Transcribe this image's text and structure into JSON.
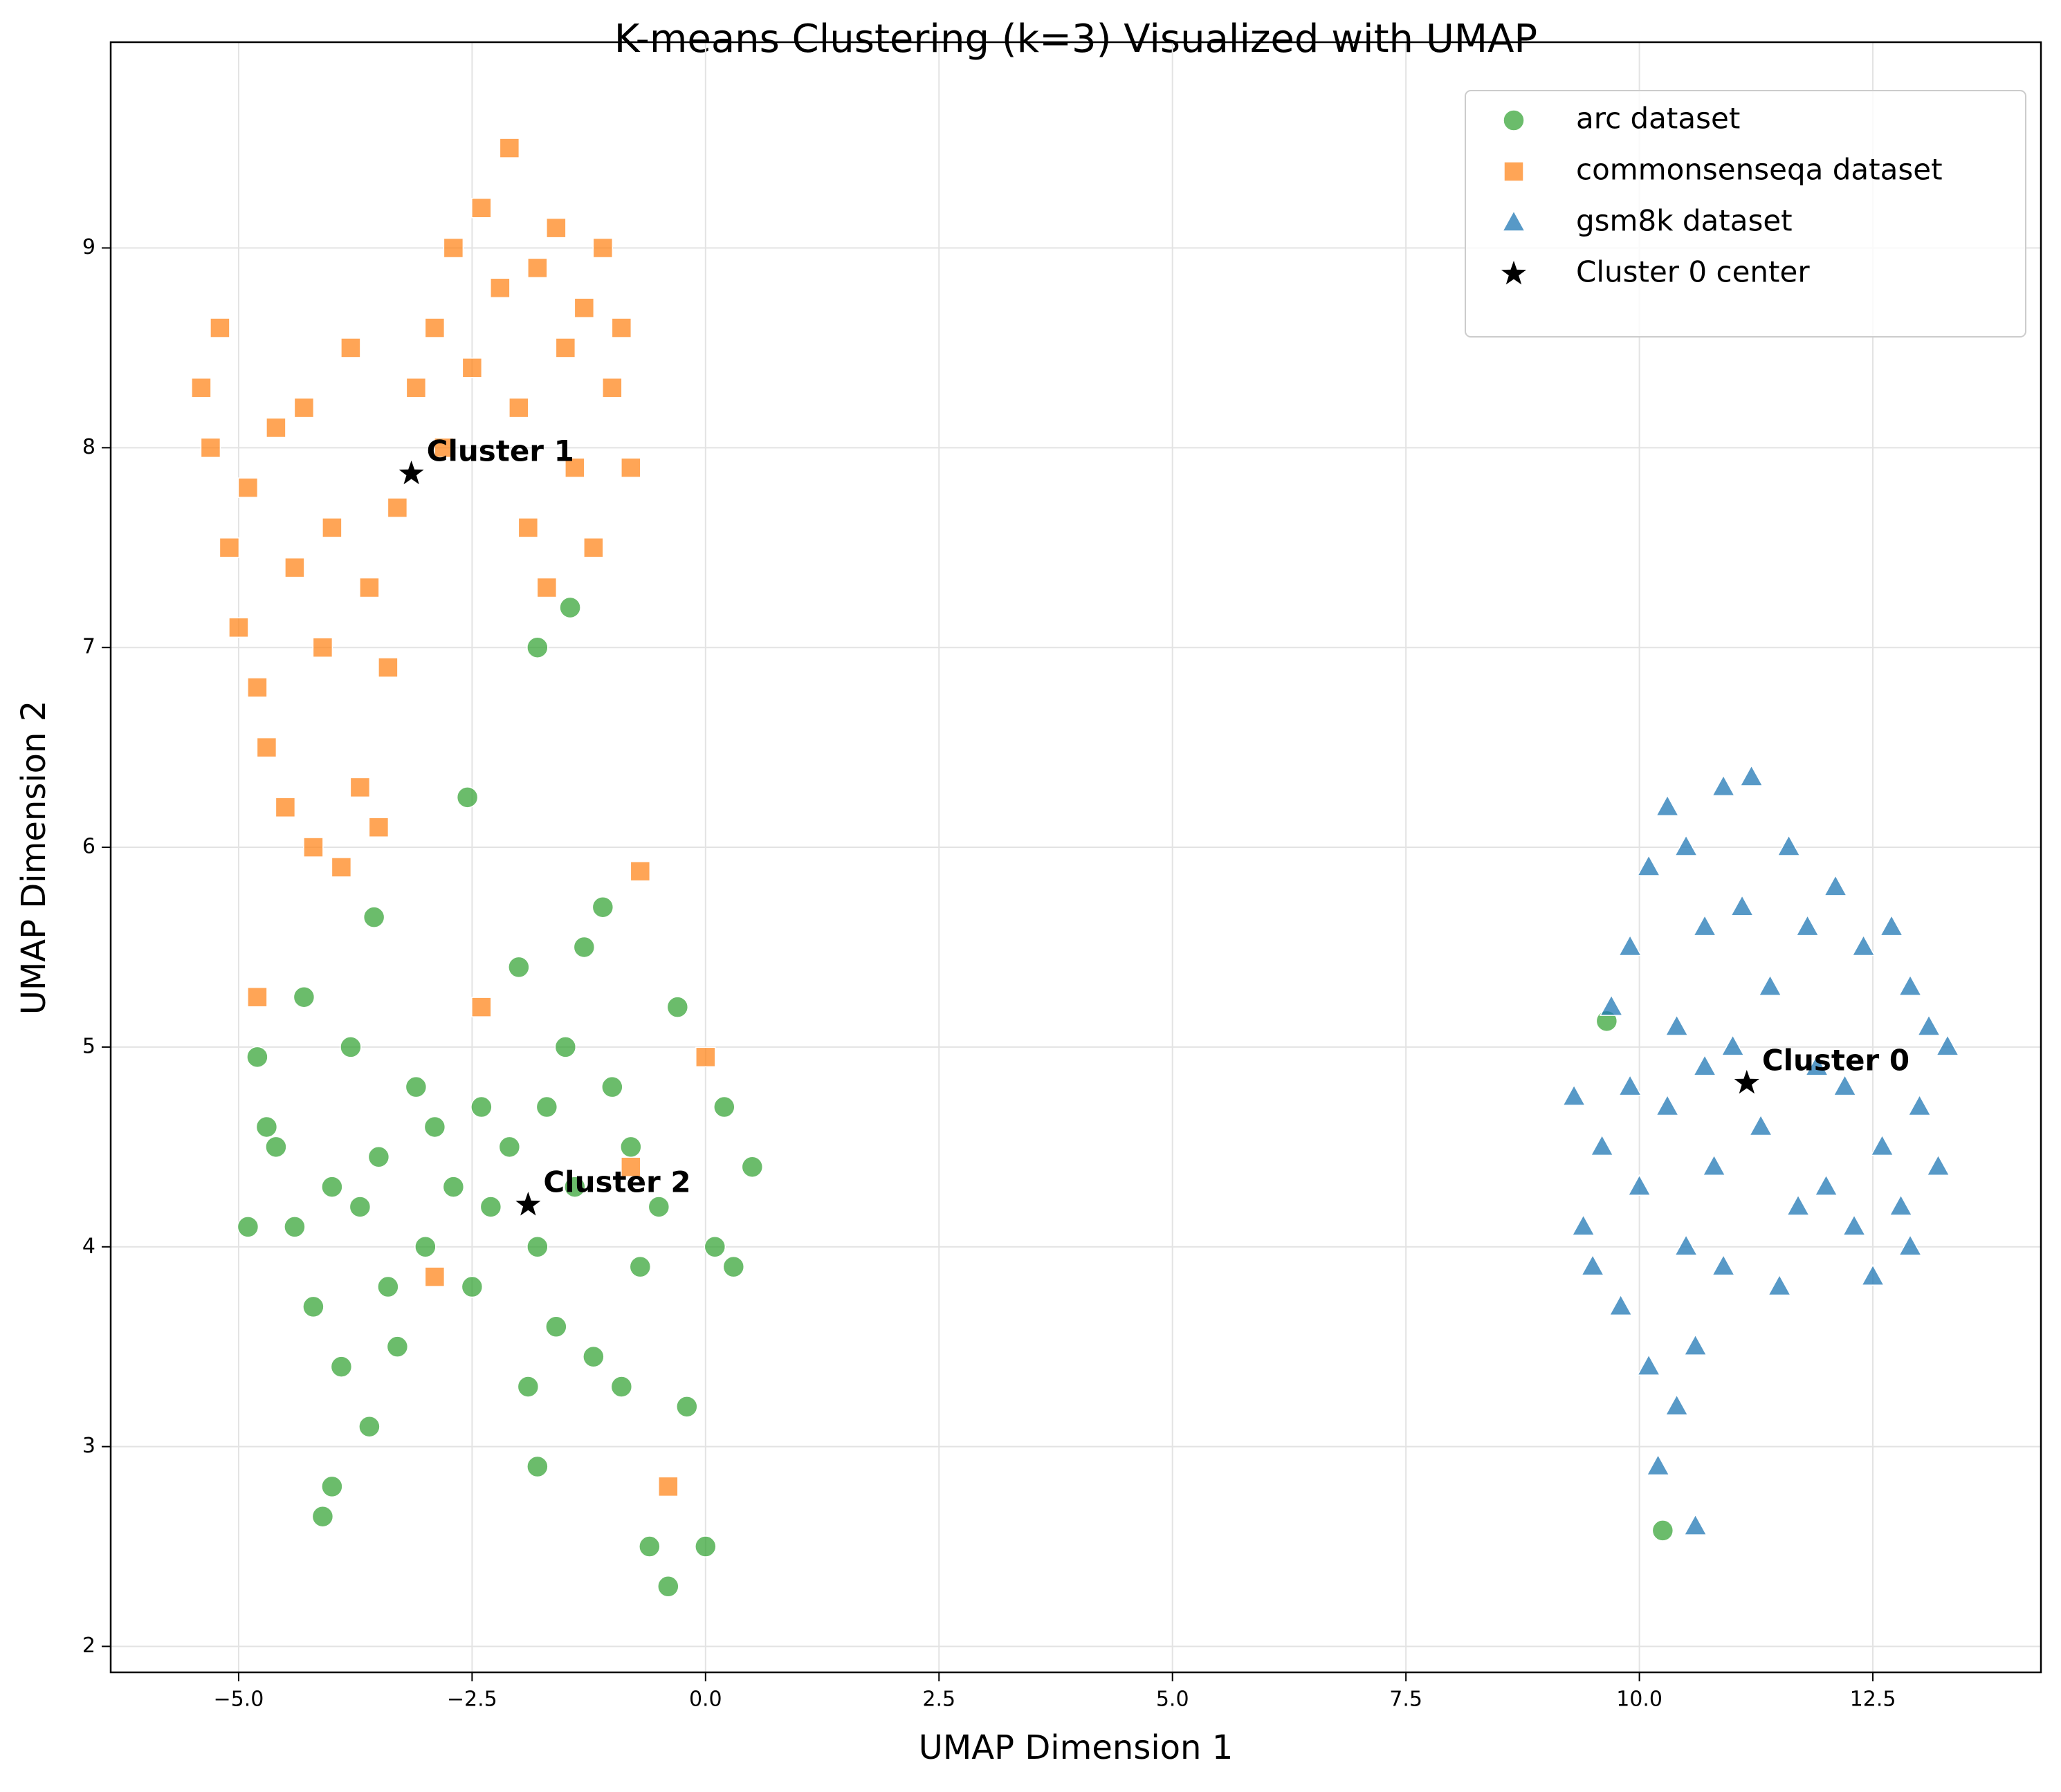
{
  "chart_data": {
    "type": "scatter",
    "title": "K-means Clustering (k=3) Visualized with UMAP",
    "xlabel": "UMAP Dimension 1",
    "ylabel": "UMAP Dimension 2",
    "xlim": [
      -6.37,
      14.3
    ],
    "ylim": [
      1.87,
      10.03
    ],
    "xticks": [
      {
        "value": -5,
        "label": "−5.0"
      },
      {
        "value": -2.5,
        "label": "−2.5"
      },
      {
        "value": 0,
        "label": "0.0"
      },
      {
        "value": 2.5,
        "label": "2.5"
      },
      {
        "value": 5,
        "label": "5.0"
      },
      {
        "value": 7.5,
        "label": "7.5"
      },
      {
        "value": 10,
        "label": "10.0"
      },
      {
        "value": 12.5,
        "label": "12.5"
      }
    ],
    "yticks": [
      2,
      3,
      4,
      5,
      6,
      7,
      8,
      9
    ],
    "grid": true,
    "legend": "upper right",
    "series": [
      {
        "name": "arc dataset",
        "color": "#2ca02c",
        "marker": "circle",
        "x": [
          -4.9,
          -4.8,
          -4.7,
          -4.6,
          -4.4,
          -4.3,
          -4.2,
          -4.1,
          -4.0,
          -4.0,
          -3.9,
          -3.8,
          -3.7,
          -3.6,
          -3.5,
          -3.4,
          -3.3,
          -3.1,
          -3.0,
          -2.9,
          -2.7,
          -2.5,
          -2.4,
          -2.3,
          -2.1,
          -2.0,
          -1.9,
          -1.8,
          -1.8,
          -1.7,
          -1.6,
          -1.5,
          -1.4,
          -1.3,
          -1.2,
          -1.1,
          -1.0,
          -0.9,
          -0.8,
          -0.7,
          -0.6,
          -0.5,
          -0.4,
          -0.3,
          -0.2,
          0.0,
          0.1,
          0.2,
          0.3,
          0.5,
          -1.8,
          -1.45,
          -2.55,
          -3.55,
          9.65,
          10.25
        ],
        "values": [
          4.1,
          4.95,
          4.6,
          4.5,
          4.1,
          5.25,
          3.7,
          2.65,
          2.8,
          4.3,
          3.4,
          5.0,
          4.2,
          3.1,
          4.45,
          3.8,
          3.5,
          4.8,
          4.0,
          4.6,
          4.3,
          3.8,
          4.7,
          4.2,
          4.5,
          5.4,
          3.3,
          4.0,
          2.9,
          4.7,
          3.6,
          5.0,
          4.3,
          5.5,
          3.45,
          5.7,
          4.8,
          3.3,
          4.5,
          3.9,
          2.5,
          4.2,
          2.3,
          5.2,
          3.2,
          2.5,
          4.0,
          4.7,
          3.9,
          4.4,
          7.0,
          7.2,
          6.25,
          5.65,
          5.13,
          2.58
        ]
      },
      {
        "name": "commonsenseqa dataset",
        "color": "#ff7f0e",
        "marker": "square",
        "x": [
          -5.4,
          -5.3,
          -5.2,
          -5.1,
          -5.0,
          -4.9,
          -4.8,
          -4.7,
          -4.6,
          -4.5,
          -4.4,
          -4.3,
          -4.2,
          -4.1,
          -4.0,
          -3.9,
          -3.8,
          -3.7,
          -3.6,
          -3.5,
          -3.4,
          -3.3,
          -3.1,
          -2.9,
          -2.8,
          -2.7,
          -2.5,
          -2.4,
          -2.2,
          -2.1,
          -2.0,
          -1.9,
          -1.8,
          -1.7,
          -1.6,
          -1.5,
          -1.4,
          -1.3,
          -1.2,
          -1.1,
          -1.0,
          -0.9,
          -0.8,
          -4.8,
          -2.4,
          -0.7,
          -0.4,
          -2.9,
          0.0,
          -0.8
        ],
        "values": [
          8.3,
          8.0,
          8.6,
          7.5,
          7.1,
          7.8,
          6.8,
          6.5,
          8.1,
          6.2,
          7.4,
          8.2,
          6.0,
          7.0,
          7.6,
          5.9,
          8.5,
          6.3,
          7.3,
          6.1,
          6.9,
          7.7,
          8.3,
          8.6,
          8.0,
          9.0,
          8.4,
          9.2,
          8.8,
          9.5,
          8.2,
          7.6,
          8.9,
          7.3,
          9.1,
          8.5,
          7.9,
          8.7,
          7.5,
          9.0,
          8.3,
          8.6,
          7.9,
          5.25,
          5.2,
          5.88,
          2.8,
          3.85,
          4.95,
          4.4
        ]
      },
      {
        "name": "gsm8k dataset",
        "color": "#1f77b4",
        "marker": "triangle",
        "x": [
          9.3,
          9.4,
          9.5,
          9.6,
          9.7,
          9.8,
          9.9,
          10.0,
          10.1,
          10.1,
          10.2,
          10.3,
          10.3,
          10.4,
          10.4,
          10.5,
          10.5,
          10.6,
          10.6,
          10.7,
          10.8,
          10.9,
          10.9,
          11.0,
          11.1,
          11.2,
          11.3,
          11.4,
          11.5,
          11.6,
          11.7,
          11.8,
          11.9,
          12.0,
          12.1,
          12.2,
          12.3,
          12.4,
          12.5,
          12.6,
          12.7,
          12.8,
          12.9,
          13.0,
          13.1,
          13.2,
          13.3,
          9.9,
          10.7,
          12.9
        ],
        "values": [
          4.75,
          4.1,
          3.9,
          4.5,
          5.2,
          3.7,
          5.5,
          4.3,
          5.9,
          3.4,
          2.9,
          6.2,
          4.7,
          3.2,
          5.1,
          6.0,
          4.0,
          2.6,
          3.5,
          5.6,
          4.4,
          6.3,
          3.9,
          5.0,
          5.7,
          6.35,
          4.6,
          5.3,
          3.8,
          6.0,
          4.2,
          5.6,
          4.9,
          4.3,
          5.8,
          4.8,
          4.1,
          5.5,
          3.85,
          4.5,
          5.6,
          4.2,
          5.3,
          4.7,
          5.1,
          4.4,
          5.0,
          4.8,
          4.9,
          4.0
        ]
      },
      {
        "name": "Cluster 0 center",
        "color": "#000000",
        "marker": "star",
        "x": [
          11.15,
          -3.15,
          -1.9
        ],
        "values": [
          4.82,
          7.87,
          4.21
        ]
      }
    ],
    "annotations": [
      "Cluster 0",
      "Cluster 1",
      "Cluster 2"
    ]
  }
}
